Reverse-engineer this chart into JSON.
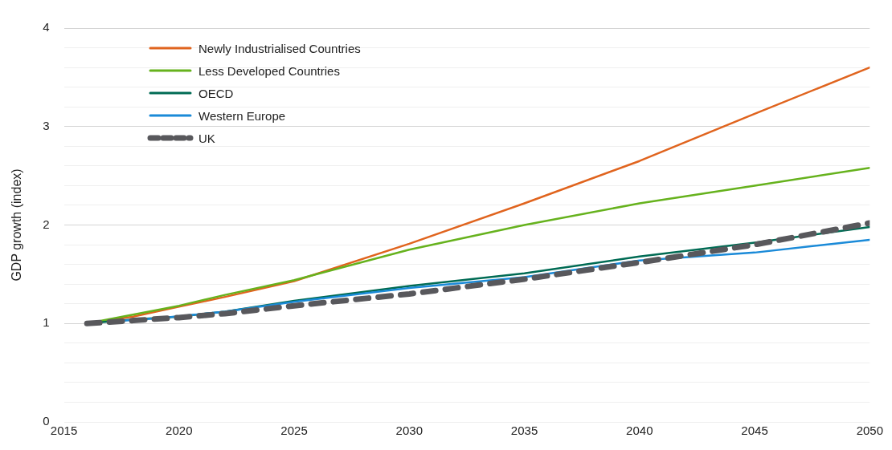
{
  "chart_data": {
    "type": "line",
    "ylabel": "GDP growth (index)",
    "x": [
      2016,
      2018,
      2020,
      2022,
      2025,
      2030,
      2035,
      2040,
      2045,
      2050
    ],
    "xlim": [
      2015,
      2050
    ],
    "xticks": [
      2015,
      2020,
      2025,
      2030,
      2035,
      2040,
      2045,
      2050
    ],
    "ylim": [
      0,
      4
    ],
    "yticks": [
      0,
      {
        "value": 0.2,
        "label": null
      },
      {
        "value": 0.4,
        "label": null
      },
      {
        "value": 0.6,
        "label": null
      },
      {
        "value": 0.8,
        "label": null
      },
      1,
      {
        "value": 1.2,
        "label": null
      },
      {
        "value": 1.4,
        "label": null
      },
      {
        "value": 1.6,
        "label": null
      },
      {
        "value": 1.8,
        "label": null
      },
      2,
      {
        "value": 2.2,
        "label": null
      },
      {
        "value": 2.4,
        "label": null
      },
      {
        "value": 2.6,
        "label": null
      },
      {
        "value": 2.8,
        "label": null
      },
      3,
      {
        "value": 3.2,
        "label": null
      },
      {
        "value": 3.4,
        "label": null
      },
      {
        "value": 3.6,
        "label": null
      },
      {
        "value": 3.8,
        "label": null
      },
      4
    ],
    "grid": "y",
    "legend": "top left",
    "marker": "none",
    "series": [
      {
        "name": "Newly Industrialised Countries",
        "color": "#e0641e",
        "line_style": "solid",
        "values": [
          1.0,
          1.07,
          1.17,
          1.27,
          1.43,
          1.81,
          2.22,
          2.65,
          3.13,
          3.6
        ]
      },
      {
        "name": "Less Developed Countries",
        "color": "#66b21d",
        "line_style": "solid",
        "values": [
          1.0,
          1.09,
          1.18,
          1.29,
          1.44,
          1.75,
          2.0,
          2.22,
          2.4,
          2.58
        ]
      },
      {
        "name": "OECD",
        "color": "#006b54",
        "line_style": "solid",
        "values": [
          1.0,
          1.04,
          1.07,
          1.12,
          1.23,
          1.38,
          1.51,
          1.68,
          1.82,
          1.98
        ]
      },
      {
        "name": "Western Europe",
        "color": "#1a8ad8",
        "line_style": "solid",
        "x": [
          2017,
          2019,
          2022,
          2025,
          2030,
          2035,
          2040,
          2045,
          2050
        ],
        "values": [
          1.02,
          1.05,
          1.12,
          1.22,
          1.36,
          1.47,
          1.64,
          1.72,
          1.85
        ]
      },
      {
        "name": "UK",
        "color": "#58585c",
        "line_style": "dashed",
        "values": [
          1.0,
          1.03,
          1.06,
          1.1,
          1.18,
          1.3,
          1.45,
          1.62,
          1.8,
          2.02
        ]
      }
    ]
  }
}
